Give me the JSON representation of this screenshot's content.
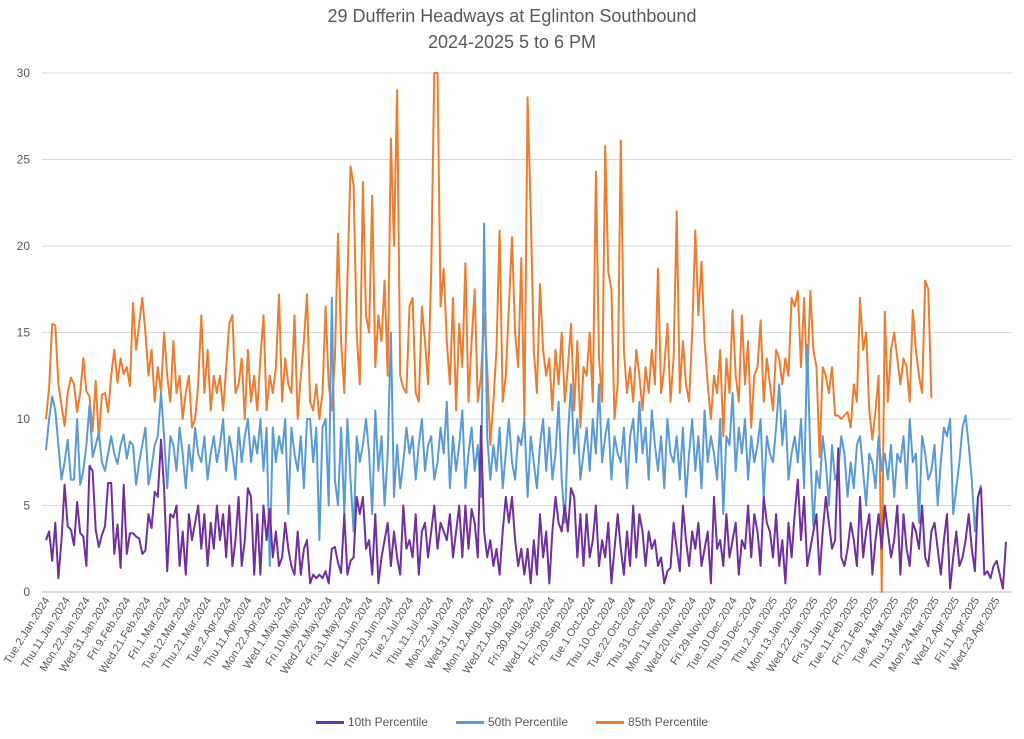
{
  "chart_data": {
    "type": "line",
    "title": "29 Dufferin Headways at Eglinton Southbound",
    "subtitle": "2024-2025 5 to 6 PM",
    "xlabel": "",
    "ylabel": "",
    "ylim": [
      0,
      30
    ],
    "yticks": [
      0,
      5,
      10,
      15,
      20,
      25,
      30
    ],
    "grid": true,
    "legend_position": "bottom",
    "x_tick_labels": [
      "Tue.2.Jan.2024",
      "Thu.11.Jan.2024",
      "Mon.22.Jan.2024",
      "Wed.31.Jan.2024",
      "Fri.9.Feb.2024",
      "Wed.21.Feb.2024",
      "Fri.1.Mar.2024",
      "Tue.12.Mar.2024",
      "Thu.21.Mar.2024",
      "Tue.2.Apr.2024",
      "Thu.11.Apr.2024",
      "Mon.22.Apr.2024",
      "Wed.1.May.2024",
      "Fri.10.May.2024",
      "Wed.22.May.2024",
      "Fri.31.May.2024",
      "Tue.11.Jun.2024",
      "Thu.20.Jun.2024",
      "Tue.2.Jul.2024",
      "Thu.11.Jul.2024",
      "Mon.22.Jul.2024",
      "Wed.31.Jul.2024",
      "Mon.12.Aug.2024",
      "Wed.21.Aug.2024",
      "Fri.30.Aug.2024",
      "Wed.11.Sep.2024",
      "Fri.20.Sep.2024",
      "Tue.1.Oct.2024",
      "Thu.10.Oct.2024",
      "Tue.22.Oct.2024",
      "Thu.31.Oct.2024",
      "Mon.11.Nov.2024",
      "Wed.20.Nov.2024",
      "Fri.29.Nov.2024",
      "Tue.10.Dec.2024",
      "Thu.19.Dec.2024",
      "Thu.2.Jan.2025",
      "Mon.13.Jan.2025",
      "Wed.22.Jan.2025",
      "Fri.31.Jan.2025",
      "Tue.11.Feb.2025",
      "Fri.21.Feb.2025",
      "Tue.4.Mar.2025",
      "Thu.13.Mar.2025",
      "Mon.24.Mar.2025",
      "Wed.2.Apr.2025",
      "Fri.11.Apr.2025",
      "Wed.23.Apr.2025"
    ],
    "series": [
      {
        "name": "10th Percentile",
        "color": "#7030A0",
        "values": [
          3.0,
          3.5,
          1.8,
          4.0,
          0.8,
          3.0,
          6.2,
          3.8,
          3.6,
          2.7,
          5.2,
          3.4,
          3.2,
          1.5,
          7.3,
          7.0,
          3.6,
          2.6,
          3.3,
          3.8,
          6.3,
          6.3,
          2.2,
          3.9,
          1.4,
          6.2,
          2.2,
          3.4,
          3.4,
          3.2,
          3.1,
          2.2,
          2.4,
          4.5,
          3.7,
          5.8,
          5.5,
          8.8,
          6.0,
          1.2,
          4.5,
          4.3,
          5.0,
          1.5,
          3.5,
          1.0,
          4.5,
          3.0,
          4.0,
          5.0,
          2.5,
          4.5,
          1.5,
          4.0,
          2.5,
          5.0,
          3.0,
          4.5,
          2.0,
          5.0,
          1.5,
          3.0,
          5.5,
          1.5,
          3.0,
          6.0,
          5.5,
          1.0,
          4.5,
          1.0,
          5.0,
          3.0,
          4.8,
          2.0,
          3.5,
          1.5,
          2.0,
          4.0,
          2.5,
          1.5,
          1.0,
          3.5,
          1.0,
          2.5,
          3.0,
          0.5,
          1.0,
          0.8,
          1.0,
          0.8,
          1.2,
          0.5,
          2.5,
          2.6,
          1.7,
          1.1,
          4.5,
          1.0,
          1.8,
          2.0,
          5.5,
          4.5,
          5.5,
          2.5,
          3.0,
          1.0,
          4.5,
          0.5,
          2.0,
          3.0,
          4.0,
          1.5,
          3.5,
          2.0,
          1.0,
          5.0,
          2.5,
          3.0,
          2.0,
          4.5,
          1.0,
          3.5,
          4.0,
          2.0,
          3.5,
          5.0,
          2.5,
          4.0,
          3.5,
          3.0,
          4.5,
          2.0,
          3.5,
          5.0,
          2.0,
          5.0,
          2.5,
          4.8,
          4.0,
          2.0,
          9.6,
          3.5,
          2.0,
          3.0,
          1.5,
          2.5,
          1.0,
          3.5,
          5.5,
          4.0,
          5.5,
          3.0,
          1.5,
          2.5,
          1.0,
          2.5,
          0.5,
          3.0,
          1.0,
          4.5,
          2.0,
          3.5,
          0.5,
          3.5,
          5.5,
          4.0,
          3.5,
          5.0,
          3.5,
          6.0,
          5.5,
          2.0,
          4.5,
          1.5,
          4.5,
          2.0,
          3.0,
          5.0,
          1.5,
          3.0,
          2.0,
          4.0,
          0.5,
          2.5,
          4.5,
          2.5,
          1.0,
          3.5,
          1.5,
          5.0,
          2.0,
          4.5,
          3.5,
          1.5,
          3.5,
          2.5,
          3.0,
          1.5,
          2.0,
          0.5,
          1.2,
          1.4,
          4.0,
          2.5,
          1.2,
          5.0,
          3.0,
          1.5,
          3.5,
          2.5,
          4.0,
          1.5,
          2.5,
          3.5,
          0.5,
          5.5,
          2.5,
          3.0,
          1.5,
          4.5,
          2.0,
          3.0,
          4.0,
          1.0,
          3.0,
          2.5,
          5.0,
          2.0,
          4.5,
          3.5,
          1.5,
          5.5,
          4.0,
          3.5,
          2.0,
          4.5,
          1.5,
          3.0,
          0.5,
          4.0,
          2.0,
          4.5,
          6.5,
          3.0,
          5.5,
          1.5,
          2.5,
          3.5,
          4.5,
          1.0,
          3.5,
          5.5,
          4.0,
          2.5,
          3.0,
          8.3,
          2.0,
          1.5,
          2.5,
          4.0,
          3.0,
          1.5,
          5.5,
          2.0,
          3.5,
          4.5,
          1.0,
          3.0,
          4.5,
          2.5,
          5.0,
          3.5,
          2.0,
          3.0,
          5.0,
          1.0,
          4.5,
          2.5,
          1.5,
          4.0,
          3.5,
          2.5,
          5.0,
          2.0,
          1.5,
          3.5,
          4.0,
          2.5,
          1.0,
          3.0,
          4.5,
          0.2,
          2.0,
          3.5,
          1.5,
          2.0,
          3.0,
          4.5,
          2.5,
          1.2,
          5.5,
          6.0,
          1.0,
          1.2,
          0.8,
          1.5,
          1.8,
          1.0,
          0.2,
          2.9
        ]
      },
      {
        "name": "50th Percentile",
        "color": "#5B9BD5",
        "values": [
          8.2,
          10.0,
          11.3,
          10.5,
          8.5,
          6.5,
          7.5,
          8.8,
          6.5,
          6.5,
          10.0,
          6.2,
          7.0,
          8.5,
          10.8,
          7.8,
          8.5,
          9.2,
          7.5,
          7.0,
          8.0,
          9.0,
          8.0,
          7.4,
          8.5,
          9.1,
          7.7,
          8.7,
          8.5,
          6.2,
          7.5,
          8.5,
          9.5,
          6.2,
          7.2,
          8.5,
          9.0,
          11.5,
          9.0,
          6.0,
          9.0,
          8.5,
          7.0,
          9.5,
          8.0,
          6.0,
          8.5,
          7.0,
          9.5,
          8.0,
          7.5,
          9.0,
          6.5,
          8.0,
          9.0,
          7.5,
          8.5,
          10.0,
          7.0,
          9.0,
          8.0,
          6.5,
          9.5,
          7.5,
          9.0,
          10.0,
          7.5,
          9.0,
          8.0,
          10.0,
          7.0,
          9.5,
          1.5,
          9.5,
          7.5,
          9.0,
          8.0,
          10.0,
          4.5,
          9.5,
          8.0,
          7.0,
          9.0,
          6.0,
          10.0,
          10.0,
          7.5,
          9.5,
          3.0,
          9.5,
          10.0,
          5.0,
          17.0,
          6.5,
          5.0,
          9.5,
          4.5,
          10.0,
          6.5,
          3.5,
          9.0,
          7.5,
          8.5,
          10.0,
          8.0,
          4.5,
          10.5,
          7.0,
          9.0,
          5.0,
          8.0,
          15.0,
          5.5,
          8.5,
          6.0,
          7.5,
          9.5,
          8.0,
          9.0,
          6.5,
          8.5,
          10.0,
          7.0,
          8.5,
          9.0,
          6.5,
          7.5,
          9.5,
          8.0,
          11.0,
          6.0,
          9.0,
          7.0,
          8.5,
          10.5,
          6.0,
          8.0,
          9.5,
          7.0,
          8.5,
          5.5,
          21.3,
          9.0,
          6.5,
          8.5,
          7.0,
          9.5,
          6.0,
          8.0,
          10.0,
          7.5,
          6.5,
          9.0,
          8.5,
          10.0,
          5.5,
          9.0,
          7.5,
          6.0,
          8.5,
          10.0,
          7.0,
          9.5,
          6.5,
          8.0,
          11.0,
          6.5,
          4.0,
          9.0,
          12.0,
          8.0,
          10.0,
          6.5,
          8.0,
          9.5,
          7.0,
          10.0,
          8.0,
          12.0,
          7.5,
          9.0,
          10.0,
          6.5,
          9.0,
          8.0,
          7.5,
          9.5,
          6.0,
          9.0,
          10.0,
          7.5,
          11.0,
          8.0,
          9.5,
          6.5,
          10.5,
          8.5,
          7.0,
          9.0,
          6.0,
          10.0,
          8.0,
          7.5,
          9.0,
          6.5,
          9.5,
          5.5,
          8.0,
          10.0,
          7.0,
          9.0,
          6.0,
          10.5,
          7.5,
          9.0,
          8.0,
          6.5,
          10.0,
          4.5,
          9.0,
          8.5,
          11.5,
          7.0,
          9.5,
          8.0,
          10.0,
          6.5,
          9.0,
          7.5,
          8.5,
          10.0,
          5.5,
          9.0,
          8.0,
          7.5,
          9.5,
          12.0,
          8.5,
          10.5,
          6.5,
          8.0,
          9.0,
          7.5,
          10.0,
          6.0,
          14.3,
          8.0,
          3.8,
          7.0,
          6.0,
          9.0,
          7.5,
          5.0,
          8.5,
          6.5,
          7.0,
          9.0,
          8.0,
          5.5,
          7.5,
          6.0,
          8.5,
          9.0,
          7.0,
          5.0,
          8.0,
          7.5,
          6.0,
          9.0,
          7.0,
          8.0,
          6.5,
          8.5,
          5.5,
          8.0,
          7.5,
          9.0,
          6.0,
          10.0,
          7.5,
          8.0,
          4.0,
          9.0,
          8.0,
          6.5,
          7.0,
          8.5,
          5.0,
          7.5,
          9.5,
          9.0,
          10.0,
          4.5,
          6.0,
          7.5,
          9.5,
          10.2,
          8.5,
          6.5,
          3.5,
          5.5,
          6.2
        ]
      },
      {
        "name": "85th Percentile",
        "color": "#ED7D31",
        "values": [
          10.0,
          11.8,
          15.5,
          15.4,
          12.0,
          10.8,
          9.6,
          11.5,
          12.4,
          12.0,
          10.4,
          11.5,
          13.5,
          11.6,
          11.3,
          9.3,
          12.2,
          8.8,
          11.4,
          11.5,
          10.4,
          12.5,
          14.0,
          12.1,
          13.5,
          12.6,
          13.0,
          11.9,
          16.7,
          14.0,
          15.5,
          17.0,
          15.0,
          12.5,
          14.0,
          11.0,
          13.0,
          11.5,
          15.0,
          12.5,
          11.0,
          14.5,
          11.5,
          12.5,
          10.0,
          11.5,
          12.5,
          9.5,
          10.0,
          12.0,
          16.0,
          11.5,
          14.0,
          10.5,
          12.5,
          11.5,
          12.5,
          10.5,
          13.0,
          15.5,
          16.0,
          11.5,
          12.0,
          13.5,
          10.0,
          14.0,
          11.0,
          12.5,
          10.5,
          13.5,
          16.0,
          10.5,
          12.5,
          11.5,
          13.0,
          17.2,
          11.0,
          13.5,
          12.0,
          11.5,
          16.0,
          10.0,
          12.5,
          14.5,
          17.2,
          11.0,
          10.5,
          12.0,
          10.0,
          11.5,
          16.5,
          12.0,
          10.5,
          13.5,
          20.7,
          14.5,
          11.5,
          18.0,
          24.6,
          23.5,
          15.0,
          12.0,
          23.7,
          16.0,
          15.0,
          22.9,
          13.0,
          16.0,
          14.5,
          18.0,
          12.5,
          26.2,
          20.0,
          29.0,
          12.5,
          11.8,
          11.5,
          16.5,
          17.0,
          11.5,
          11.0,
          16.5,
          14.5,
          12.0,
          18.5,
          30.0,
          30.0,
          16.5,
          18.7,
          14.5,
          12.0,
          17.0,
          10.5,
          15.5,
          13.0,
          19.0,
          11.0,
          14.5,
          17.5,
          11.0,
          12.5,
          16.0,
          13.0,
          8.5,
          11.0,
          14.0,
          20.9,
          11.0,
          12.5,
          16.5,
          20.5,
          15.0,
          13.0,
          19.3,
          10.0,
          28.6,
          22.0,
          14.0,
          11.5,
          17.8,
          14.0,
          12.5,
          13.5,
          10.5,
          14.0,
          12.0,
          15.0,
          11.0,
          13.0,
          15.5,
          10.5,
          14.5,
          9.5,
          13.0,
          12.5,
          15.0,
          11.0,
          24.3,
          13.5,
          11.0,
          25.8,
          18.5,
          17.5,
          10.0,
          12.0,
          26.1,
          14.0,
          11.5,
          13.0,
          11.0,
          14.0,
          12.5,
          10.5,
          13.0,
          11.5,
          14.0,
          12.0,
          18.7,
          11.5,
          13.0,
          15.5,
          11.0,
          13.5,
          22.0,
          11.5,
          14.5,
          12.0,
          11.0,
          15.0,
          20.9,
          16.0,
          19.1,
          14.5,
          12.0,
          10.0,
          12.5,
          11.5,
          14.0,
          9.0,
          13.5,
          11.5,
          16.3,
          12.5,
          11.0,
          16.0,
          12.0,
          14.5,
          9.5,
          12.5,
          13.0,
          15.7,
          11.0,
          13.5,
          12.0,
          10.5,
          14.0,
          13.5,
          12.0,
          13.5,
          12.5,
          17.0,
          16.5,
          17.4,
          13.0,
          17.0,
          12.0,
          17.4,
          14.0,
          13.0,
          7.8,
          13.0,
          12.5,
          11.5,
          13.0,
          10.2,
          10.2,
          10.0,
          10.2,
          10.4,
          9.5,
          12.0,
          11.0,
          17.0,
          14.0,
          15.0,
          10.5,
          8.8,
          10.5,
          12.5,
          0.0,
          16.2,
          11.0,
          14.0,
          15.0,
          13.5,
          12.0,
          13.5,
          13.0,
          11.0,
          16.3,
          14.0,
          12.5,
          11.5,
          18.0,
          17.5,
          11.2
        ]
      }
    ]
  }
}
